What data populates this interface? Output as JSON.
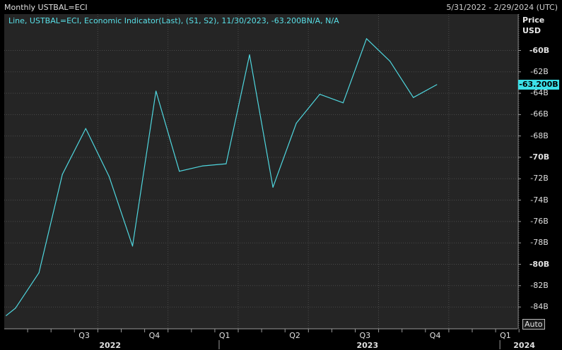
{
  "header": {
    "title": "Monthly USTBAL=ECI",
    "date_range": "5/31/2022 - 2/29/2024 (UTC)"
  },
  "legend": {
    "text": "Line, USTBAL=ECI, Economic Indicator(Last), (S1, S2), 11/30/2023, -63.200BN/A, N/A",
    "color": "#4fd6de"
  },
  "axis": {
    "price_label": "Price",
    "currency_label": "USD",
    "last_value_label": "-63.200B",
    "auto_label": "Auto"
  },
  "colors": {
    "background": "#000000",
    "plot_background": "#252525",
    "grid": "#4a4a4a",
    "line": "#4fd6de",
    "badge": "#3ce0e8"
  },
  "chart_data": {
    "type": "line",
    "title": "Monthly USTBAL=ECI",
    "xlabel": "",
    "ylabel": "Price USD",
    "ylim": [
      -85.0,
      -57.0
    ],
    "grid": true,
    "y_ticks": [
      -60,
      -62,
      -64,
      -66,
      -68,
      -70,
      -72,
      -74,
      -76,
      -78,
      -80,
      -82,
      -84
    ],
    "y_tick_labels": [
      "-60B",
      "-62B",
      "-64B",
      "-66B",
      "-68B",
      "-70B",
      "-72B",
      "-74B",
      "-76B",
      "-78B",
      "-80B",
      "-82B",
      "-84B"
    ],
    "bold_ticks": [
      -60,
      -70,
      -80
    ],
    "x_quarter_labels": [
      {
        "label": "Q3",
        "month": 3
      },
      {
        "label": "Q4",
        "month": 6
      },
      {
        "label": "Q1",
        "month": 9
      },
      {
        "label": "Q2",
        "month": 12
      },
      {
        "label": "Q3",
        "month": 15
      },
      {
        "label": "Q4",
        "month": 18
      },
      {
        "label": "Q1",
        "month": 21
      }
    ],
    "x_year_labels": [
      {
        "label": "2022",
        "month": 4
      },
      {
        "label": "2023",
        "month": 15
      },
      {
        "label": "2024",
        "month": 21.7
      }
    ],
    "year_boundaries": [
      8.7,
      20.7
    ],
    "month_gridlines": [
      1,
      2,
      3,
      4,
      5,
      6,
      7,
      8,
      9,
      10,
      11,
      12,
      13,
      14,
      15,
      16,
      17,
      18,
      19,
      20,
      21,
      22
    ],
    "series": [
      {
        "values": [
          {
            "x": -0.4,
            "y": -84.8
          },
          {
            "x": 0,
            "y": -84.1
          },
          {
            "x": 1,
            "y": -80.8
          },
          {
            "x": 2,
            "y": -71.6
          },
          {
            "x": 3,
            "y": -67.3
          },
          {
            "x": 4,
            "y": -71.8
          },
          {
            "x": 5,
            "y": -78.3
          },
          {
            "x": 6,
            "y": -63.8
          },
          {
            "x": 7,
            "y": -71.3
          },
          {
            "x": 8,
            "y": -70.8
          },
          {
            "x": 9,
            "y": -70.6
          },
          {
            "x": 10,
            "y": -60.4
          },
          {
            "x": 11,
            "y": -72.8
          },
          {
            "x": 12,
            "y": -66.8
          },
          {
            "x": 13,
            "y": -64.1
          },
          {
            "x": 14,
            "y": -64.9
          },
          {
            "x": 15,
            "y": -58.9
          },
          {
            "x": 16,
            "y": -61.0
          },
          {
            "x": 17,
            "y": -64.4
          },
          {
            "x": 18,
            "y": -63.2
          }
        ]
      }
    ]
  }
}
